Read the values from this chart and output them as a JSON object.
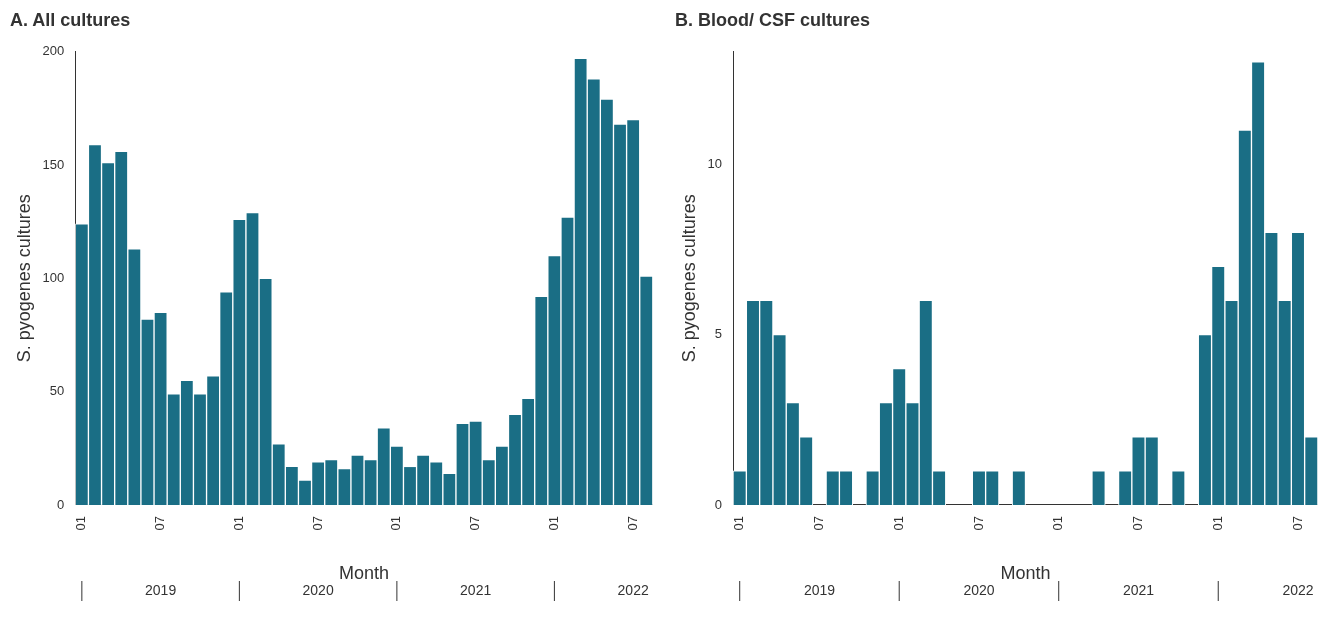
{
  "chart_data": [
    {
      "type": "bar",
      "title": "A. All cultures",
      "xlabel": "Month",
      "ylabel": "S. pyogenes cultures",
      "color": "#1a6e85",
      "categories": [
        "01",
        null,
        null,
        null,
        null,
        null,
        "07",
        null,
        null,
        null,
        null,
        null,
        "01",
        null,
        null,
        null,
        null,
        null,
        "07",
        null,
        null,
        null,
        null,
        null,
        "01",
        null,
        null,
        null,
        null,
        null,
        "07",
        null,
        null,
        null,
        null,
        null,
        "01",
        null,
        null,
        null,
        null,
        null,
        "07",
        null
      ],
      "values": [
        124,
        159,
        151,
        156,
        113,
        82,
        85,
        49,
        55,
        49,
        57,
        94,
        126,
        129,
        100,
        27,
        17,
        11,
        19,
        20,
        16,
        22,
        20,
        34,
        26,
        17,
        22,
        19,
        14,
        36,
        37,
        20,
        26,
        40,
        47,
        92,
        110,
        127,
        197,
        188,
        179,
        168,
        170,
        101
      ],
      "ylim": [
        0,
        200
      ],
      "yticks": [
        0,
        50,
        100,
        150,
        200
      ],
      "grid": false,
      "legend": false,
      "annotations": [
        "2019",
        "2020",
        "2021",
        "2022"
      ]
    },
    {
      "type": "bar",
      "title": "B. Blood/ CSF cultures",
      "xlabel": "Month",
      "ylabel": "S. pyogenes cultures",
      "color": "#1a6e85",
      "categories": [
        "01",
        null,
        null,
        null,
        null,
        null,
        "07",
        null,
        null,
        null,
        null,
        null,
        "01",
        null,
        null,
        null,
        null,
        null,
        "07",
        null,
        null,
        null,
        null,
        null,
        "01",
        null,
        null,
        null,
        null,
        null,
        "07",
        null,
        null,
        null,
        null,
        null,
        "01",
        null,
        null,
        null,
        null,
        null,
        "07",
        null
      ],
      "values": [
        1,
        6,
        6,
        5,
        3,
        2,
        0,
        1,
        1,
        0,
        1,
        3,
        4,
        3,
        6,
        1,
        0,
        0,
        1,
        1,
        0,
        1,
        0,
        0,
        0,
        0,
        0,
        1,
        0,
        1,
        2,
        2,
        0,
        1,
        0,
        5,
        7,
        6,
        11,
        13,
        8,
        6,
        8,
        2
      ],
      "ylim": [
        0,
        13.3
      ],
      "yticks": [
        0,
        5,
        10
      ],
      "grid": false,
      "legend": false,
      "annotations": [
        "2019",
        "2020",
        "2021",
        "2022"
      ]
    }
  ]
}
